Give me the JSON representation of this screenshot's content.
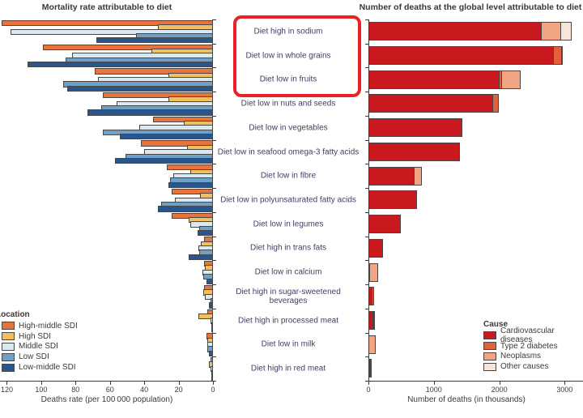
{
  "figure": {
    "left_title": "Mortality rate attributable to diet",
    "right_title": "Number of deaths at the global level attributable to diet",
    "left_axis_caption": "Deaths rate (per 100 000 population)",
    "right_axis_caption": "Number of deaths (in thousands)",
    "location_legend_title": "Location",
    "cause_legend_title": "Cause",
    "highlight_color": "#eb2127",
    "highlighted_categories": [
      "Diet high in sodium",
      "Diet low in whole grains",
      "Diet low in fruits"
    ]
  },
  "chart_data": [
    {
      "type": "bar",
      "orientation": "horizontal",
      "axis_reversed": true,
      "title": "Mortality rate attributable to diet",
      "xlabel": "Deaths rate (per 100 000 population)",
      "ticks": [
        120,
        100,
        80,
        60,
        40,
        20,
        0
      ],
      "xlim": [
        0,
        124
      ],
      "grid": false,
      "legend_title": "Location",
      "legend_position": "bottom-left",
      "categories": [
        "Diet high in sodium",
        "Diet low in whole grains",
        "Diet low in fruits",
        "Diet low in nuts and seeds",
        "Diet low in vegetables",
        "Diet low in seafood omega-3 fatty acids",
        "Diet low in fibre",
        "Diet low in polyunsaturated fatty acids",
        "Diet low in legumes",
        "Diet high in trans fats",
        "Diet low in calcium",
        "Diet high in sugar-sweetened beverages",
        "Diet high in processed meat",
        "Diet low in milk",
        "Diet high in red meat"
      ],
      "series": [
        {
          "name": "High-middle SDI",
          "color": "#e8743c",
          "values": [
            123,
            99,
            69,
            64,
            35,
            42,
            27,
            24,
            24,
            5,
            5,
            5,
            3.5,
            4,
            1.5
          ]
        },
        {
          "name": "High SDI",
          "color": "#f0c060",
          "values": [
            32,
            36,
            26,
            26,
            17,
            15,
            13,
            7.5,
            14,
            7,
            4.5,
            5.5,
            8.5,
            3.5,
            2.2
          ]
        },
        {
          "name": "Middle SDI",
          "color": "#dce8ef",
          "values": [
            118,
            82,
            67,
            56,
            43,
            40,
            23,
            22,
            13,
            8.5,
            6,
            4.5,
            1.5,
            3.2,
            1.2
          ]
        },
        {
          "name": "Low SDI",
          "color": "#6fa0c8",
          "values": [
            45,
            86,
            87,
            65,
            64,
            51,
            25,
            30,
            8,
            8,
            5.5,
            1.5,
            0.8,
            3.3,
            0.5
          ]
        },
        {
          "name": "Low-middle SDI",
          "color": "#28568c",
          "values": [
            68,
            108,
            85,
            73,
            54,
            57,
            26,
            32,
            9,
            14,
            4,
            2.5,
            1,
            2.5,
            0.7
          ]
        }
      ]
    },
    {
      "type": "bar",
      "orientation": "horizontal",
      "stacked": true,
      "title": "Number of deaths at the global level attributable to diet",
      "xlabel": "Number of deaths (in thousands)",
      "ticks": [
        0,
        1000,
        2000,
        3000
      ],
      "xlim": [
        0,
        3280
      ],
      "grid": false,
      "legend_title": "Cause",
      "legend_position": "bottom-right",
      "categories": [
        "Diet high in sodium",
        "Diet low in whole grains",
        "Diet low in fruits",
        "Diet low in nuts and seeds",
        "Diet low in vegetables",
        "Diet low in seafood omega-3 fatty acids",
        "Diet low in fibre",
        "Diet low in polyunsaturated fatty acids",
        "Diet low in legumes",
        "Diet high in trans fats",
        "Diet low in calcium",
        "Diet high in sugar-sweetened beverages",
        "Diet high in processed meat",
        "Diet low in milk",
        "Diet high in red meat"
      ],
      "series": [
        {
          "name": "Cardiovascular diseases",
          "color": "#c9181e",
          "values": [
            2650,
            2830,
            2000,
            1905,
            1440,
            1395,
            710,
            745,
            490,
            220,
            30,
            60,
            70,
            0,
            25
          ]
        },
        {
          "name": "Type 2 diabetes",
          "color": "#e2613c",
          "values": [
            0,
            135,
            60,
            105,
            0,
            0,
            0,
            0,
            0,
            0,
            0,
            45,
            20,
            0,
            10
          ]
        },
        {
          "name": "Neoplasms",
          "color": "#f2a582",
          "values": [
            310,
            0,
            290,
            0,
            0,
            0,
            125,
            0,
            0,
            0,
            130,
            0,
            30,
            110,
            10
          ]
        },
        {
          "name": "Other causes",
          "color": "#f9e4d9",
          "values": [
            170,
            35,
            0,
            0,
            0,
            0,
            0,
            0,
            0,
            0,
            0,
            0,
            0,
            0,
            0
          ]
        }
      ]
    }
  ]
}
